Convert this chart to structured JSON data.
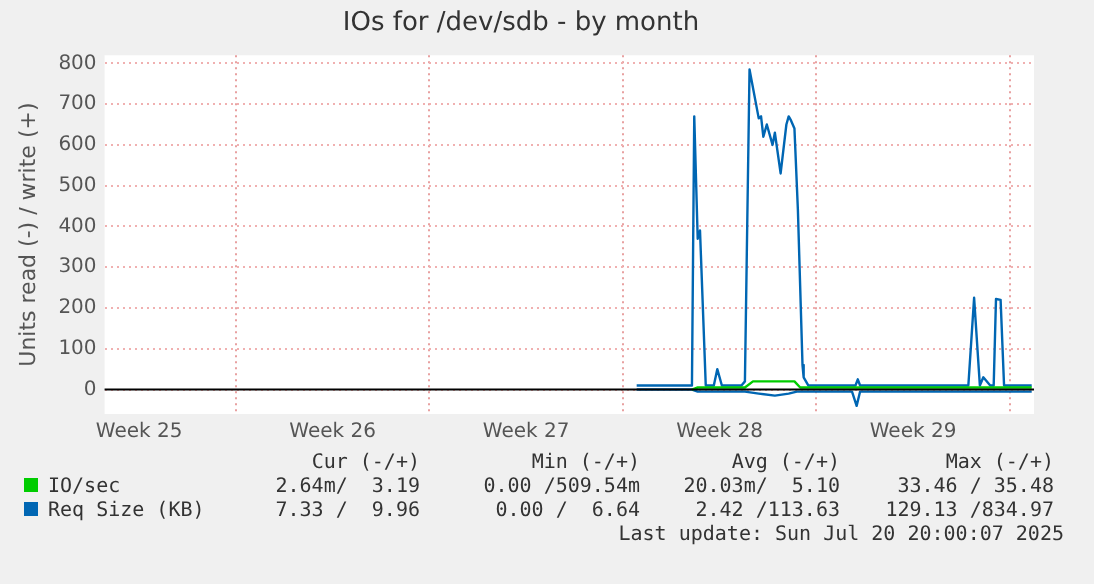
{
  "chart_data": {
    "type": "line",
    "title": "IOs for /dev/sdb - by month",
    "ylabel": "Units read (-) / write (+)",
    "xlim": [
      "2025-06-17T06:00",
      "2025-07-20T21:00"
    ],
    "xticks": [
      {
        "value": "2025-06-18T12:00",
        "label": "Week 25"
      },
      {
        "value": "2025-06-22T00:00",
        "label": null
      },
      {
        "value": "2025-06-25T12:00",
        "label": "Week 26"
      },
      {
        "value": "2025-06-29T00:00",
        "label": null
      },
      {
        "value": "2025-07-02T12:00",
        "label": "Week 27"
      },
      {
        "value": "2025-07-06T00:00",
        "label": null
      },
      {
        "value": "2025-07-09T12:00",
        "label": "Week 28"
      },
      {
        "value": "2025-07-13T00:00",
        "label": null
      },
      {
        "value": "2025-07-16T12:00",
        "label": "Week 29"
      },
      {
        "value": "2025-07-20T00:00",
        "label": null
      }
    ],
    "ylim": [
      -60,
      820
    ],
    "yticks": [
      0,
      100,
      200,
      300,
      400,
      500,
      600,
      700,
      800
    ],
    "grid": true,
    "legend": "bottom",
    "ref_lines": [
      {
        "axis": "y",
        "value": 0,
        "color": "#000000"
      }
    ],
    "series": [
      {
        "name": "IO/sec",
        "color": "#00cc00",
        "x": [
          "2025-07-08T12:00",
          "2025-07-08T17:00",
          "2025-07-10T10:00",
          "2025-07-10T17:00",
          "2025-07-12T05:00",
          "2025-07-12T10:00",
          "2025-07-20T19:00"
        ],
        "values": [
          0,
          5,
          5,
          20,
          20,
          5,
          5
        ]
      },
      {
        "name": "Req Size (KB)",
        "color": "#0066b3",
        "x": [
          "2025-07-06T12:00",
          "2025-07-08T12:00",
          "2025-07-08T14:00",
          "2025-07-08T17:00",
          "2025-07-08T19:00",
          "2025-07-09T00:00",
          "2025-07-09T07:00",
          "2025-07-09T10:00",
          "2025-07-09T14:00",
          "2025-07-10T07:00",
          "2025-07-10T10:00",
          "2025-07-10T14:00",
          "2025-07-10T22:00",
          "2025-07-11T00:00",
          "2025-07-11T02:00",
          "2025-07-11T05:00",
          "2025-07-11T10:00",
          "2025-07-11T12:00",
          "2025-07-11T14:00",
          "2025-07-11T17:00",
          "2025-07-11T22:00",
          "2025-07-12T00:00",
          "2025-07-12T02:00",
          "2025-07-12T05:00",
          "2025-07-12T08:00",
          "2025-07-12T12:00",
          "2025-07-12T13:00",
          "2025-07-12T17:00",
          "2025-07-14T10:00",
          "2025-07-14T12:00",
          "2025-07-14T14:00",
          "2025-07-18T12:00",
          "2025-07-18T17:00",
          "2025-07-18T22:00",
          "2025-07-19T01:00",
          "2025-07-19T07:00",
          "2025-07-19T10:00",
          "2025-07-19T12:00",
          "2025-07-19T16:00",
          "2025-07-19T19:00",
          "2025-07-20T19:00"
        ],
        "values": [
          10,
          10,
          670,
          370,
          390,
          10,
          10,
          50,
          10,
          10,
          20,
          785,
          665,
          670,
          620,
          650,
          600,
          630,
          590,
          530,
          650,
          670,
          660,
          640,
          440,
          60,
          30,
          10,
          10,
          25,
          10,
          10,
          225,
          10,
          30,
          10,
          10,
          222,
          220,
          10,
          10
        ]
      },
      {
        "color": "#0066b3",
        "x": [
          "2025-07-06T12:00",
          "2025-07-08T12:00",
          "2025-07-08T17:00",
          "2025-07-10T10:00",
          "2025-07-10T22:00",
          "2025-07-11T12:00",
          "2025-07-12T00:00",
          "2025-07-12T07:00",
          "2025-07-14T07:00",
          "2025-07-14T11:00",
          "2025-07-14T14:00",
          "2025-07-20T19:00"
        ],
        "values": [
          0,
          0,
          -5,
          -5,
          -10,
          -15,
          -10,
          -5,
          -5,
          -40,
          -5,
          -5
        ]
      }
    ],
    "annotations": [
      "Cur (-/+)",
      "Min (-/+)",
      "Avg (-/+)",
      "Max (-/+)",
      "2.64m/  3.19",
      "0.00 /509.54m",
      "20.03m/  5.10",
      "33.46 / 35.48",
      "7.33 /  9.96",
      "0.00 /  6.64",
      "2.42 /113.63",
      "129.13 /834.97",
      "Last update: Sun Jul 20 20:00:07 2025"
    ]
  }
}
